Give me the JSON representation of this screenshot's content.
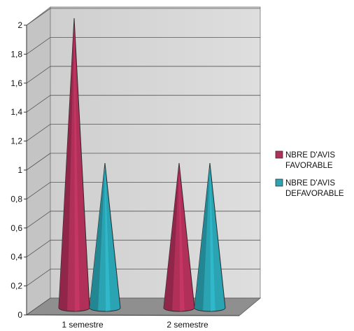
{
  "chart_data": {
    "type": "bar",
    "style": "3d-cone",
    "categories": [
      "1 semestre",
      "2 semestre"
    ],
    "series": [
      {
        "name": "NBRE D'AVIS FAVORABLE",
        "name_lines": [
          "NBRE D'AVIS",
          "FAVORABLE"
        ],
        "values": [
          2,
          1
        ],
        "color": "#b0305a"
      },
      {
        "name": "NBRE D'AVIS DEFAVORABLE",
        "name_lines": [
          "NBRE D'AVIS",
          "DEFAVORABLE"
        ],
        "values": [
          1,
          1
        ],
        "color": "#2aa3b3"
      }
    ],
    "ylim": [
      0,
      2
    ],
    "yticks": [
      0,
      0.2,
      0.4,
      0.6,
      0.8,
      1,
      1.2,
      1.4,
      1.6,
      1.8,
      2
    ],
    "ytick_labels": [
      "0",
      "0,2",
      "0,4",
      "0,6",
      "0,8",
      "1",
      "1,2",
      "1,4",
      "1,6",
      "1,8",
      "2"
    ],
    "grid": true,
    "legend_position": "right",
    "wall_color": "#d6d6d6",
    "floor_color": "#8f8f8f"
  }
}
